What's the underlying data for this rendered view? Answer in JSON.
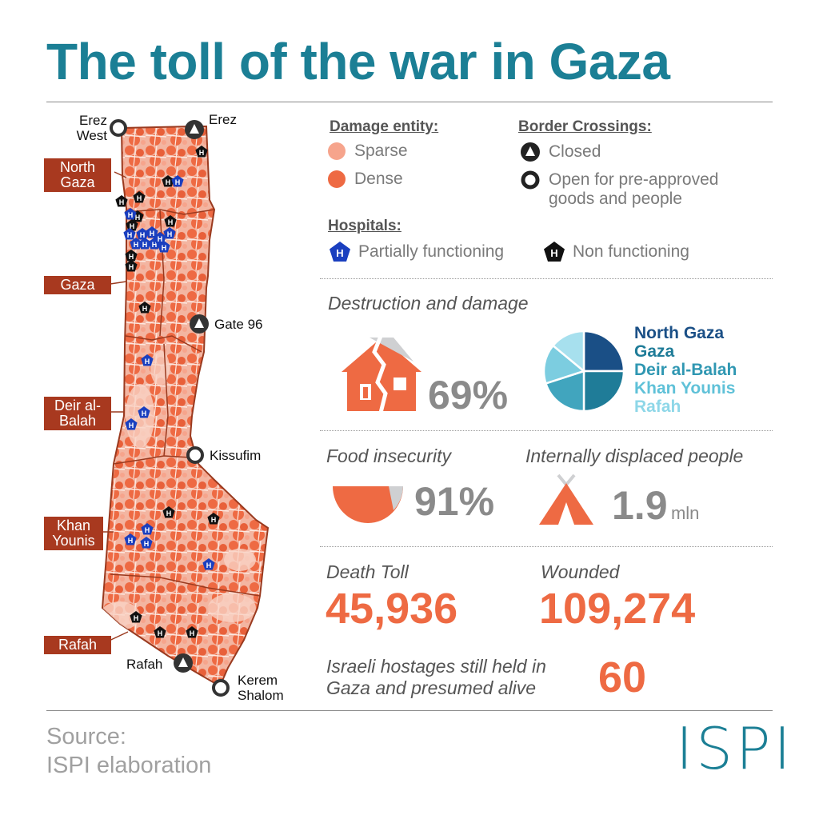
{
  "title": "The toll of the war in Gaza",
  "legend": {
    "damage_heading": "Damage entity:",
    "damage_sparse": "Sparse",
    "damage_dense": "Dense",
    "crossings_heading": "Border Crossings:",
    "crossing_closed": "Closed",
    "crossing_open": "Open for pre-approved goods and people",
    "hospitals_heading": "Hospitals:",
    "hospital_partial": "Partially functioning",
    "hospital_non": "Non functioning",
    "hospital_letter": "H",
    "colors": {
      "sparse": "#f6a48c",
      "dense": "#ee6a43",
      "partial": "#1a3fbf",
      "non": "#111111"
    }
  },
  "map": {
    "regions": {
      "north_gaza": "North Gaza",
      "gaza": "Gaza",
      "deir": "Deir al-Balah",
      "khan": "Khan Younis",
      "rafah": "Rafah"
    },
    "crossings": {
      "erez_west": "Erez West",
      "erez": "Erez",
      "gate96": "Gate 96",
      "kissufim": "Kissufim",
      "rafah": "Rafah",
      "kerem": "Kerem Shalom"
    }
  },
  "destruction": {
    "heading": "Destruction and damage",
    "percent": "69%",
    "icon": "damaged-house-icon",
    "pie_legend": [
      "North Gaza",
      "Gaza",
      "Deir al-Balah",
      "Khan Younis",
      "Rafah"
    ],
    "pie_colors": [
      "#1a4f86",
      "#1f7c98",
      "#41a5be",
      "#7ccde0",
      "#a7e0ee"
    ]
  },
  "food": {
    "heading": "Food insecurity",
    "percent": "91%",
    "icon": "bowl-icon"
  },
  "idp": {
    "heading": "Internally displaced people",
    "value": "1.9",
    "unit": "mln",
    "icon": "tent-icon"
  },
  "death": {
    "heading": "Death Toll",
    "value": "45,936"
  },
  "wounded": {
    "heading": "Wounded",
    "value": "109,274"
  },
  "hostages": {
    "heading": "Israeli hostages still held in Gaza and presumed alive",
    "value": "60"
  },
  "source": {
    "label": "Source:",
    "text": "ISPI elaboration"
  },
  "logo": "ISPI"
}
